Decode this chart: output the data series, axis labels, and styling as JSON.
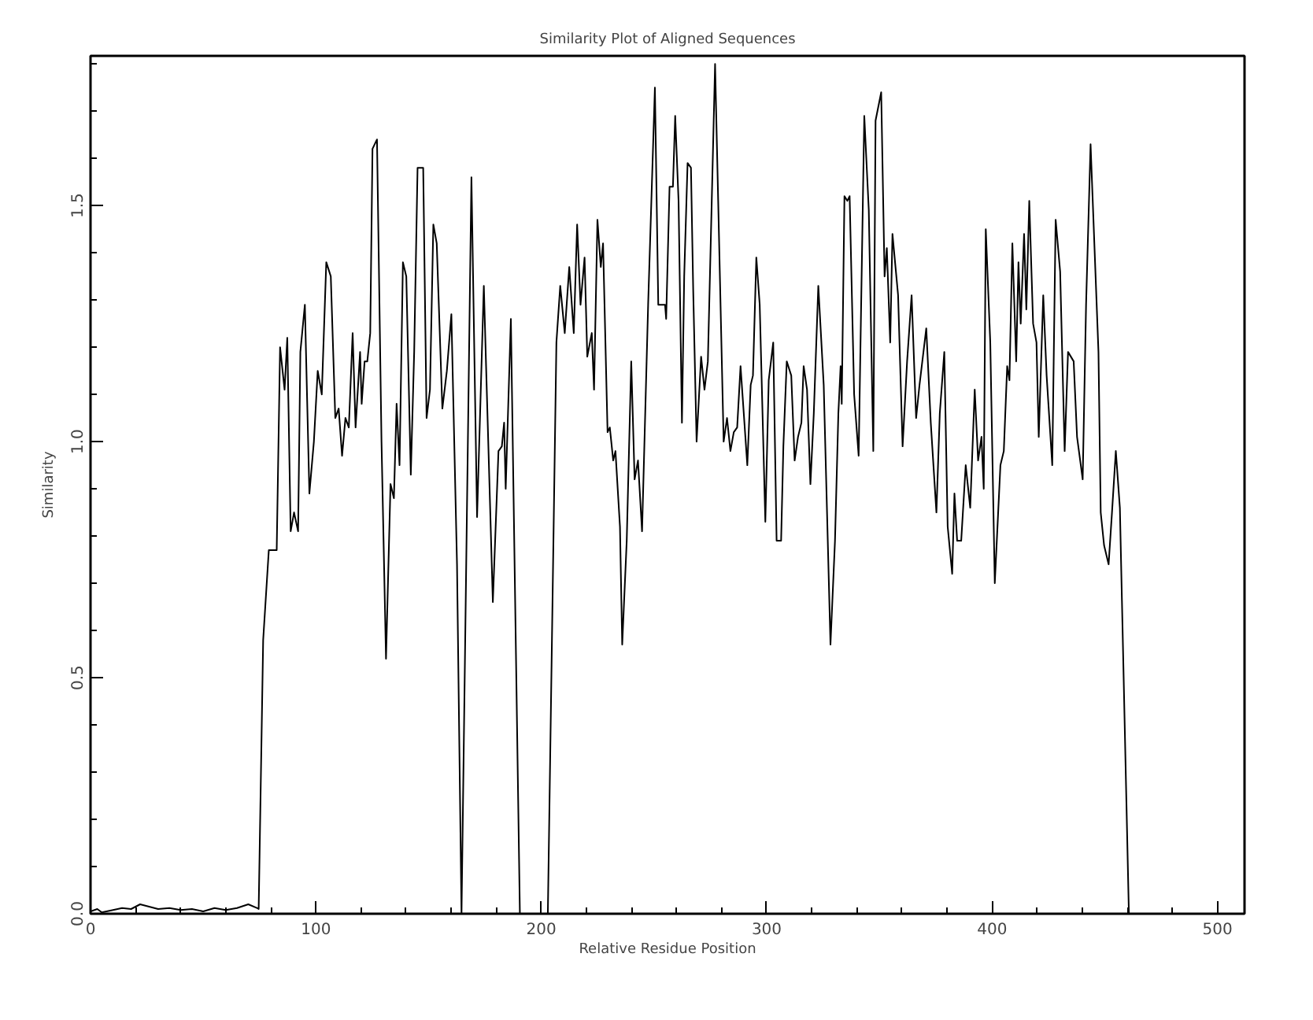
{
  "chart_data": {
    "type": "line",
    "title": "Similarity Plot of Aligned Sequences",
    "xlabel": "Relative Residue Position",
    "ylabel": "Similarity",
    "x": [
      0,
      3,
      5,
      10,
      14,
      18,
      22,
      26,
      30,
      35,
      40,
      45,
      50,
      55,
      60,
      65,
      70,
      74,
      74.6,
      76.6,
      79.1,
      82.6,
      84.1,
      86.1,
      87.3,
      88.8,
      90.3,
      92.1,
      93.1,
      95.1,
      97.1,
      99.1,
      100.8,
      102.6,
      104.6,
      106.6,
      108.6,
      110.1,
      111.6,
      113.1,
      114.6,
      116.3,
      117.6,
      119.6,
      120.3,
      121.6,
      122.8,
      124.1,
      125.1,
      127.1,
      129.1,
      131.1,
      133.1,
      134.6,
      135.8,
      137.1,
      138.6,
      140.1,
      142.1,
      143.6,
      145.1,
      147.6,
      149.1,
      150.6,
      152.1,
      153.6,
      156.1,
      158.1,
      160.1,
      162.6,
      164.6,
      169,
      171.5,
      174.5,
      175.5,
      178.5,
      181,
      182.5,
      183.5,
      184.2,
      186.5,
      190.5,
      200.5,
      202.9,
      206.7,
      208.4,
      210.4,
      212.4,
      214.4,
      215.9,
      217.4,
      219.2,
      220.4,
      222.4,
      223.4,
      224.9,
      226.4,
      227.4,
      229.4,
      230.4,
      231.9,
      232.9,
      234.9,
      235.9,
      237.9,
      239.9,
      241.4,
      242.9,
      244.7,
      247.4,
      250.4,
      251.9,
      254.9,
      255.4,
      256.9,
      258.4,
      259.4,
      260.9,
      262.4,
      263.4,
      264.9,
      266.4,
      267.4,
      268.9,
      270.9,
      272.4,
      273.9,
      277.1,
      280.9,
      282.4,
      283.9,
      285.4,
      286.9,
      288.4,
      291.4,
      292.9,
      293.9,
      295.4,
      296.9,
      299.4,
      300.9,
      302.9,
      304.4,
      306.4,
      307.4,
      308.9,
      310.9,
      312.4,
      313.9,
      315.4,
      316.4,
      317.9,
      319.4,
      320.9,
      322.9,
      325.3,
      328.3,
      330.3,
      331.8,
      332.8,
      333.3,
      334.5,
      335.8,
      336.8,
      338.8,
      340.8,
      343.3,
      345.3,
      347.3,
      348.3,
      350.8,
      352.3,
      353.3,
      354.8,
      355.8,
      358.3,
      360.3,
      362.3,
      364.3,
      366.3,
      367.8,
      370.8,
      372.8,
      375.3,
      376.8,
      378.8,
      380.3,
      382.3,
      383.3,
      384.5,
      386.3,
      388.3,
      390.3,
      392.3,
      393.8,
      395.3,
      396.3,
      397.2,
      399.2,
      401.2,
      403.7,
      405.2,
      406.7,
      407.7,
      409,
      410.7,
      411.7,
      412.7,
      414.2,
      415.2,
      416.5,
      418.2,
      419.7,
      420.7,
      422.7,
      424.2,
      426.7,
      428.2,
      430.2,
      432.2,
      433.7,
      436.2,
      437.7,
      440.2,
      441.7,
      443.7,
      447.2,
      448.2,
      449.7,
      451.7,
      453.2,
      454.9,
      456.7,
      460.7
    ],
    "series": [
      {
        "color": "#000000",
        "values": [
          0.005,
          0.01,
          0.003,
          0.008,
          0.012,
          0.01,
          0.02,
          0.015,
          0.01,
          0.012,
          0.008,
          0.01,
          0.005,
          0.012,
          0.008,
          0.012,
          0.02,
          0.012,
          0.01,
          0.58,
          0.77,
          0.77,
          1.2,
          1.11,
          1.22,
          0.81,
          0.85,
          0.81,
          1.19,
          1.29,
          0.89,
          1.0,
          1.15,
          1.1,
          1.38,
          1.35,
          1.05,
          1.07,
          0.97,
          1.05,
          1.03,
          1.23,
          1.03,
          1.19,
          1.08,
          1.17,
          1.17,
          1.23,
          1.62,
          1.64,
          1.0,
          0.54,
          0.91,
          0.88,
          1.08,
          0.95,
          1.38,
          1.35,
          0.93,
          1.19,
          1.58,
          1.58,
          1.05,
          1.11,
          1.46,
          1.42,
          1.07,
          1.15,
          1.27,
          0.74,
          0.0,
          1.56,
          0.84,
          1.33,
          1.16,
          0.66,
          0.98,
          0.99,
          1.04,
          0.9,
          1.26,
          0.0,
          0.0,
          0.0,
          1.21,
          1.33,
          1.23,
          1.37,
          1.23,
          1.46,
          1.29,
          1.39,
          1.18,
          1.23,
          1.11,
          1.47,
          1.37,
          1.42,
          1.02,
          1.03,
          0.96,
          0.98,
          0.82,
          0.57,
          0.79,
          1.17,
          0.92,
          0.96,
          0.81,
          1.29,
          1.75,
          1.29,
          1.29,
          1.26,
          1.54,
          1.54,
          1.69,
          1.51,
          1.04,
          1.35,
          1.59,
          1.58,
          1.32,
          1.0,
          1.18,
          1.11,
          1.17,
          1.8,
          1.0,
          1.05,
          0.98,
          1.02,
          1.03,
          1.16,
          0.95,
          1.12,
          1.14,
          1.39,
          1.29,
          0.83,
          1.13,
          1.21,
          0.79,
          0.79,
          0.99,
          1.17,
          1.14,
          0.96,
          1.01,
          1.04,
          1.16,
          1.11,
          0.91,
          1.06,
          1.33,
          1.12,
          0.57,
          0.79,
          1.06,
          1.16,
          1.08,
          1.52,
          1.51,
          1.52,
          1.1,
          0.97,
          1.69,
          1.49,
          0.98,
          1.68,
          1.74,
          1.35,
          1.41,
          1.21,
          1.44,
          1.31,
          0.99,
          1.17,
          1.31,
          1.05,
          1.12,
          1.24,
          1.04,
          0.85,
          1.06,
          1.19,
          0.82,
          0.72,
          0.89,
          0.79,
          0.79,
          0.95,
          0.86,
          1.11,
          0.96,
          1.01,
          0.9,
          1.45,
          1.21,
          0.7,
          0.95,
          0.98,
          1.16,
          1.13,
          1.42,
          1.17,
          1.38,
          1.25,
          1.44,
          1.28,
          1.51,
          1.25,
          1.21,
          1.01,
          1.31,
          1.14,
          0.95,
          1.47,
          1.36,
          0.98,
          1.19,
          1.17,
          1.01,
          0.92,
          1.29,
          1.63,
          1.19,
          0.85,
          0.78,
          0.74,
          0.85,
          0.98,
          0.86,
          0.0
        ]
      }
    ],
    "xlim": [
      0,
      512
    ],
    "ylim": [
      0,
      1.817
    ],
    "xticks": [
      0,
      100,
      200,
      300,
      400,
      500
    ],
    "yticks": [
      {
        "value": 0,
        "label": "0.0"
      },
      {
        "value": 0.5,
        "label": "0.5"
      },
      {
        "value": 1,
        "label": "1.0"
      },
      {
        "value": 1.5,
        "label": "1.5"
      }
    ],
    "grid": false
  }
}
